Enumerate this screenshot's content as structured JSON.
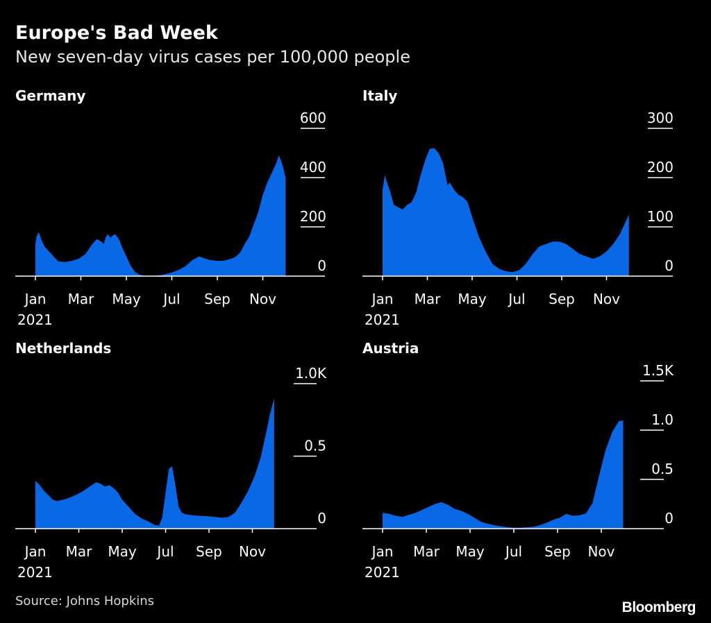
{
  "header": {
    "title": "Europe's Bad Week",
    "subtitle": "New seven-day virus cases per 100,000 people"
  },
  "footer": {
    "source": "Source: Johns Hopkins",
    "logo": "Bloomberg"
  },
  "colors": {
    "fill": "#0968e6",
    "background": "#000000",
    "axis": "#ffffff"
  },
  "chart_data": [
    {
      "type": "area",
      "title": "Germany",
      "x_unit": "month of 2021 (1 = Jan 1)",
      "x_ticks": [
        "Jan",
        "Mar",
        "May",
        "Jul",
        "Sep",
        "Nov"
      ],
      "x_tick_values": [
        1,
        3,
        5,
        7,
        9,
        11
      ],
      "year_label": "2021",
      "y_ticks": [
        "600",
        "400",
        "200",
        "0"
      ],
      "y_tick_values": [
        600,
        400,
        200,
        0
      ],
      "ylim": [
        0,
        600
      ],
      "grid": false,
      "x": [
        1.0,
        1.05,
        1.15,
        1.25,
        1.4,
        1.6,
        1.8,
        2.0,
        2.3,
        2.6,
        2.9,
        3.2,
        3.5,
        3.7,
        3.9,
        4.0,
        4.1,
        4.2,
        4.3,
        4.4,
        4.5,
        4.6,
        4.7,
        4.8,
        5.0,
        5.2,
        5.4,
        5.6,
        5.8,
        6.0,
        6.3,
        6.6,
        7.0,
        7.3,
        7.6,
        7.9,
        8.2,
        8.5,
        8.7,
        8.9,
        9.0,
        9.2,
        9.4,
        9.6,
        9.8,
        10.0,
        10.2,
        10.4,
        10.6,
        10.8,
        11.0,
        11.2,
        11.4,
        11.6,
        11.7,
        11.8,
        11.9,
        12.0
      ],
      "values": [
        130,
        160,
        180,
        150,
        120,
        100,
        80,
        60,
        57,
        62,
        70,
        90,
        130,
        150,
        140,
        130,
        160,
        170,
        155,
        165,
        170,
        160,
        145,
        120,
        80,
        40,
        15,
        5,
        1,
        0,
        2,
        5,
        15,
        25,
        40,
        65,
        80,
        70,
        65,
        63,
        62,
        62,
        65,
        70,
        78,
        95,
        130,
        160,
        210,
        260,
        330,
        380,
        420,
        460,
        490,
        470,
        440,
        400
      ]
    },
    {
      "type": "area",
      "title": "Italy",
      "x_unit": "month of 2021 (1 = Jan 1)",
      "x_ticks": [
        "Jan",
        "Mar",
        "May",
        "Jul",
        "Sep",
        "Nov"
      ],
      "x_tick_values": [
        1,
        3,
        5,
        7,
        9,
        11
      ],
      "year_label": "2021",
      "y_ticks": [
        "300",
        "200",
        "100",
        "0"
      ],
      "y_tick_values": [
        300,
        200,
        100,
        0
      ],
      "ylim": [
        0,
        300
      ],
      "grid": false,
      "x": [
        1.0,
        1.1,
        1.2,
        1.35,
        1.5,
        1.7,
        1.9,
        2.1,
        2.3,
        2.5,
        2.7,
        2.9,
        3.1,
        3.3,
        3.5,
        3.7,
        3.9,
        4.0,
        4.2,
        4.4,
        4.6,
        4.8,
        5.0,
        5.3,
        5.6,
        5.9,
        6.2,
        6.5,
        6.8,
        7.1,
        7.4,
        7.7,
        8.0,
        8.3,
        8.6,
        8.9,
        9.2,
        9.5,
        9.8,
        10.1,
        10.4,
        10.7,
        11.0,
        11.3,
        11.6,
        11.8,
        12.0
      ],
      "values": [
        175,
        205,
        190,
        170,
        145,
        140,
        135,
        145,
        150,
        170,
        205,
        235,
        258,
        260,
        250,
        230,
        185,
        190,
        175,
        165,
        160,
        150,
        120,
        80,
        50,
        25,
        15,
        10,
        8,
        12,
        25,
        45,
        60,
        65,
        70,
        70,
        65,
        55,
        45,
        40,
        35,
        40,
        50,
        65,
        85,
        105,
        125
      ]
    },
    {
      "type": "area",
      "title": "Netherlands",
      "x_unit": "month of 2021 (1 = Jan 1)",
      "x_ticks": [
        "Jan",
        "Mar",
        "May",
        "Jul",
        "Sep",
        "Nov"
      ],
      "x_tick_values": [
        1,
        3,
        5,
        7,
        9,
        11
      ],
      "year_label": "2021",
      "y_ticks": [
        "1.0K",
        "0.5",
        "0"
      ],
      "y_tick_values": [
        1000,
        500,
        0
      ],
      "ylim": [
        0,
        1000
      ],
      "grid": false,
      "x": [
        1.0,
        1.2,
        1.4,
        1.6,
        1.8,
        2.0,
        2.3,
        2.6,
        2.9,
        3.2,
        3.5,
        3.8,
        4.0,
        4.2,
        4.4,
        4.6,
        4.8,
        5.0,
        5.3,
        5.6,
        5.9,
        6.2,
        6.5,
        6.7,
        6.85,
        7.0,
        7.15,
        7.3,
        7.45,
        7.6,
        7.75,
        7.9,
        8.1,
        8.4,
        8.7,
        9.0,
        9.3,
        9.6,
        9.9,
        10.2,
        10.5,
        10.8,
        11.1,
        11.4,
        11.6,
        11.8,
        12.0
      ],
      "values": [
        330,
        300,
        260,
        230,
        200,
        190,
        200,
        215,
        235,
        260,
        290,
        320,
        310,
        290,
        300,
        280,
        250,
        200,
        150,
        100,
        70,
        50,
        25,
        20,
        80,
        250,
        410,
        430,
        300,
        150,
        110,
        100,
        95,
        90,
        88,
        85,
        80,
        75,
        80,
        110,
        180,
        260,
        360,
        500,
        640,
        780,
        900
      ]
    },
    {
      "type": "area",
      "title": "Austria",
      "x_unit": "month of 2021 (1 = Jan 1)",
      "x_ticks": [
        "Jan",
        "Mar",
        "May",
        "Jul",
        "Sep",
        "Nov"
      ],
      "x_tick_values": [
        1,
        3,
        5,
        7,
        9,
        11
      ],
      "year_label": "2021",
      "y_ticks": [
        "1.5K",
        "1.0",
        "0.5",
        "0"
      ],
      "y_tick_values": [
        1500,
        1000,
        500,
        0
      ],
      "ylim": [
        0,
        1500
      ],
      "grid": false,
      "x": [
        1.0,
        1.3,
        1.6,
        1.9,
        2.2,
        2.5,
        2.8,
        3.1,
        3.4,
        3.7,
        4.0,
        4.3,
        4.6,
        4.9,
        5.2,
        5.5,
        5.8,
        6.1,
        6.4,
        6.7,
        7.0,
        7.3,
        7.6,
        7.9,
        8.2,
        8.5,
        8.8,
        9.1,
        9.4,
        9.7,
        10.0,
        10.3,
        10.6,
        10.9,
        11.2,
        11.5,
        11.8,
        12.0
      ],
      "values": [
        160,
        150,
        130,
        120,
        140,
        160,
        190,
        220,
        250,
        270,
        240,
        200,
        180,
        150,
        110,
        70,
        50,
        35,
        25,
        15,
        10,
        10,
        15,
        20,
        35,
        60,
        90,
        110,
        150,
        130,
        135,
        155,
        260,
        540,
        800,
        980,
        1090,
        1100
      ]
    }
  ]
}
